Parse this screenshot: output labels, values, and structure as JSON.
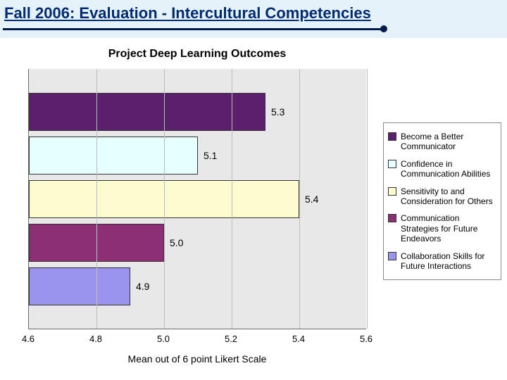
{
  "header": {
    "title": "Fall 2006: Evaluation - Intercultural Competencies"
  },
  "chart": {
    "type": "bar-horizontal",
    "title": "Project Deep Learning Outcomes",
    "x_axis": {
      "title": "Mean out of 6 point Likert Scale",
      "min": 4.6,
      "max": 5.6,
      "ticks": [
        4.6,
        4.8,
        5.0,
        5.2,
        5.4,
        5.6
      ]
    },
    "plot_bg": "#e8e8e8",
    "grid_color": "#bcbcbc",
    "axis_color": "#6a6a6a",
    "title_fontsize": 16,
    "label_fontsize": 14,
    "tick_fontsize": 13,
    "series": [
      {
        "label": "Become a Better Communicator",
        "value": 5.3,
        "value_label": "5.3",
        "fill": "#5b1f6e",
        "border": "#333333"
      },
      {
        "label": "Confidence in Communication Abilities",
        "value": 5.1,
        "value_label": "5.1",
        "fill": "#e6ffff",
        "border": "#333333"
      },
      {
        "label": "Sensitivity to and Consideration for Others",
        "value": 5.4,
        "value_label": "5.4",
        "fill": "#fdfccf",
        "border": "#333333"
      },
      {
        "label": "Communication Strategies for Future Endeavors",
        "value": 5.0,
        "value_label": "5.0",
        "fill": "#8d2f75",
        "border": "#333333"
      },
      {
        "label": "Collaboration Skills for Future Interactions",
        "value": 4.9,
        "value_label": "4.9",
        "fill": "#9b94ee",
        "border": "#333333"
      }
    ],
    "legend": {
      "border": "#8a8a8a",
      "bg": "#ffffff",
      "fontsize": 12
    }
  }
}
